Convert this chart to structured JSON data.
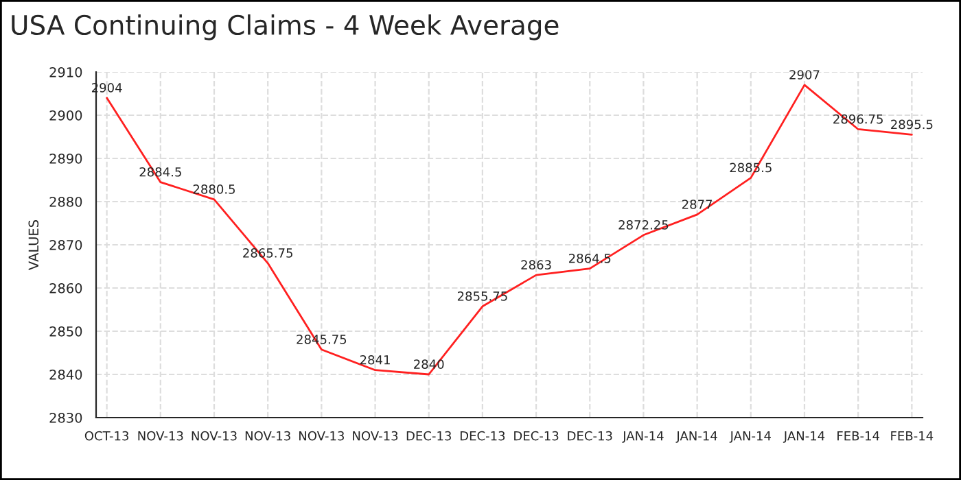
{
  "chart_data": {
    "type": "line",
    "title": "USA Continuing Claims - 4 Week Average",
    "ylabel": "VALUES",
    "categories": [
      "OCT-13",
      "NOV-13",
      "NOV-13",
      "NOV-13",
      "NOV-13",
      "NOV-13",
      "DEC-13",
      "DEC-13",
      "DEC-13",
      "DEC-13",
      "JAN-14",
      "JAN-14",
      "JAN-14",
      "JAN-14",
      "FEB-14",
      "FEB-14"
    ],
    "values": [
      2904,
      2884.5,
      2880.5,
      2865.75,
      2845.75,
      2841,
      2840,
      2855.75,
      2863,
      2864.5,
      2872.25,
      2877,
      2885.5,
      2907,
      2896.75,
      2895.5
    ],
    "color": "#ff2020",
    "ylim": [
      2830,
      2910
    ],
    "yticks": [
      2830,
      2840,
      2850,
      2860,
      2870,
      2880,
      2890,
      2900,
      2910
    ],
    "grid": true,
    "data_labels": true,
    "marker": "none",
    "line_style": "solid"
  }
}
